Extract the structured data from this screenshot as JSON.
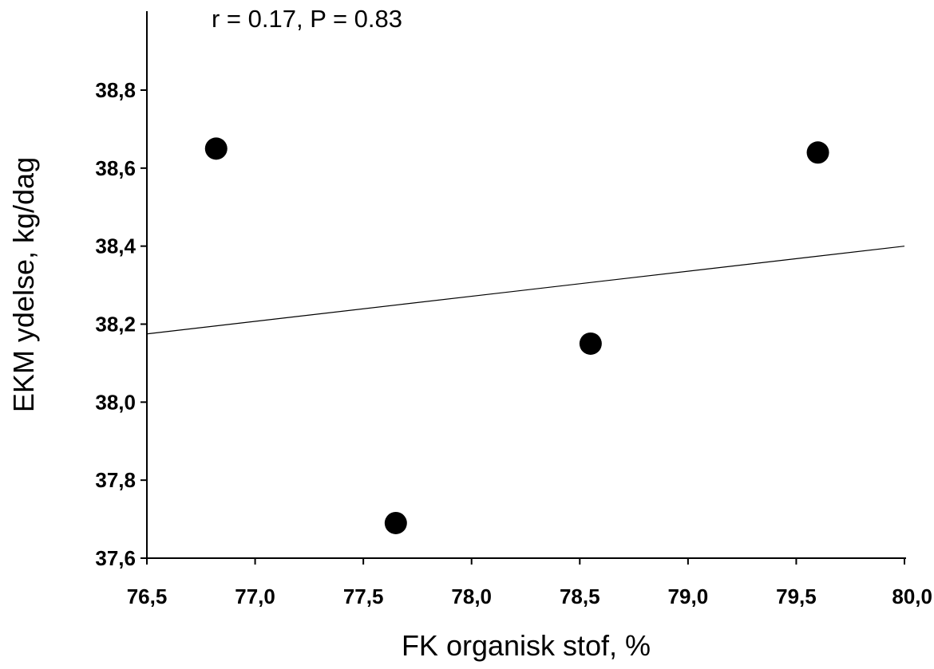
{
  "chart_data": {
    "type": "scatter",
    "title": "",
    "annotation": "r = 0.17, P = 0.83",
    "xlabel": "FK organisk stof, %",
    "ylabel": "EKM ydelse, kg/dag",
    "xlim": [
      76.5,
      80.0
    ],
    "ylim": [
      37.6,
      39.0
    ],
    "x_ticks": [
      "76,5",
      "77,0",
      "77,5",
      "78,0",
      "78,5",
      "79,0",
      "79,5",
      "80,0"
    ],
    "y_ticks": [
      "37,6",
      "37,8",
      "38,0",
      "38,2",
      "38,4",
      "38,6",
      "38,8"
    ],
    "grid": false,
    "series": [
      {
        "points": [
          {
            "x": 76.82,
            "y": 38.65
          },
          {
            "x": 77.65,
            "y": 37.69
          },
          {
            "x": 78.55,
            "y": 38.15
          },
          {
            "x": 79.6,
            "y": 38.64
          }
        ]
      }
    ],
    "trendline": {
      "x": [
        76.5,
        80.0
      ],
      "y": [
        38.175,
        38.4
      ]
    }
  }
}
